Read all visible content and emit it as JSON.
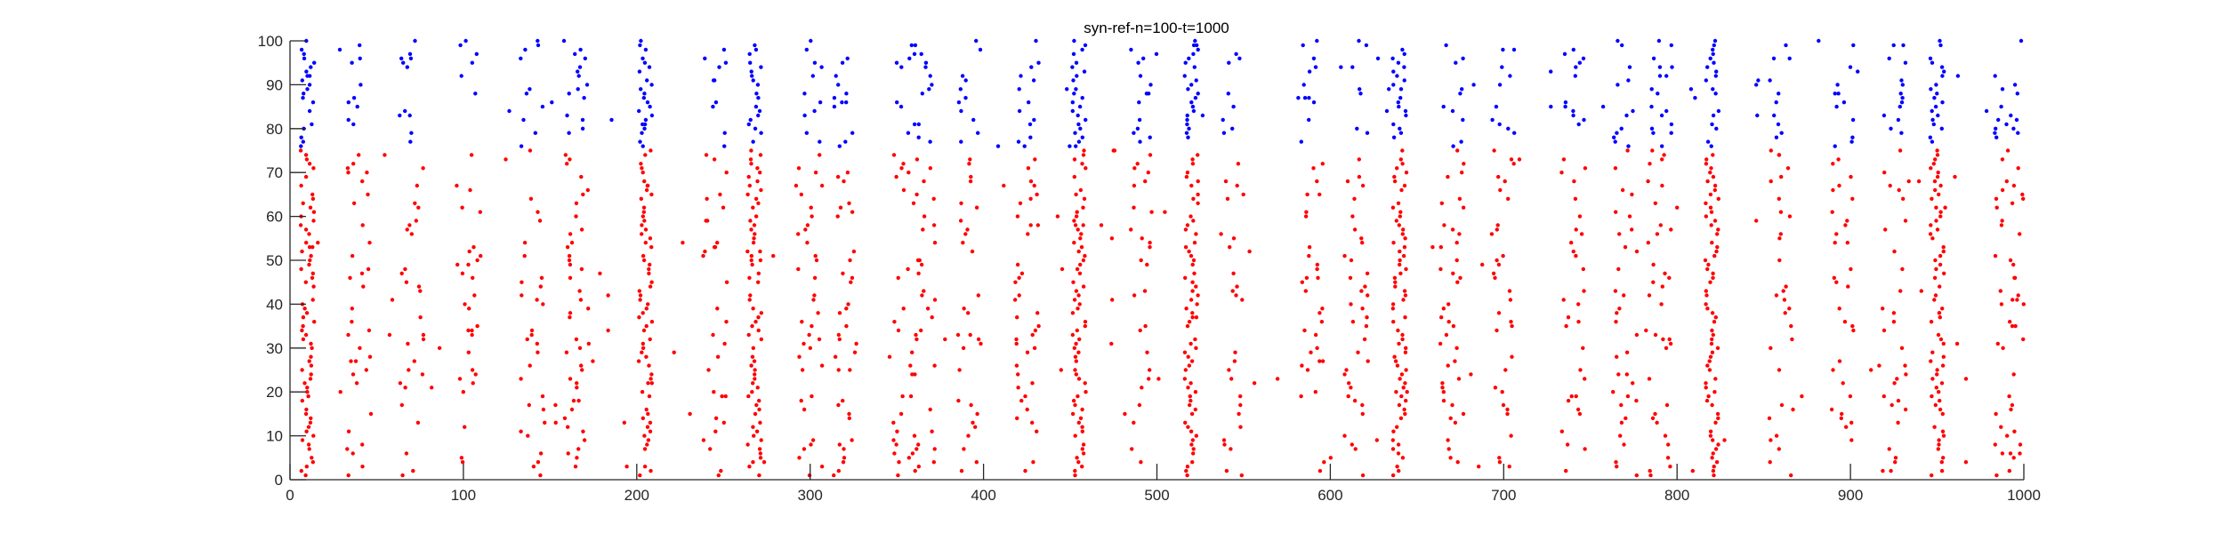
{
  "chart_data": {
    "type": "scatter",
    "title": "syn-ref-n=100-t=1000",
    "xlabel": "",
    "ylabel": "",
    "xlim": [
      0,
      1000
    ],
    "ylim": [
      0,
      100
    ],
    "x_ticks": [
      0,
      100,
      200,
      300,
      400,
      500,
      600,
      700,
      800,
      900,
      1000
    ],
    "y_ticks": [
      0,
      10,
      20,
      30,
      40,
      50,
      60,
      70,
      80,
      90,
      100
    ],
    "x_tick_labels": [
      "0",
      "100",
      "200",
      "300",
      "400",
      "500",
      "600",
      "700",
      "800",
      "900",
      "1000"
    ],
    "y_tick_labels": [
      "0",
      "10",
      "20",
      "30",
      "40",
      "50",
      "60",
      "70",
      "80",
      "90",
      "100"
    ],
    "grid": false,
    "legend": false,
    "colors": {
      "excitatory": "#ff0000",
      "inhibitory": "#0000ff",
      "axis": "#262626"
    },
    "series": [
      {
        "color": "#ff0000",
        "neuron_range": [
          1,
          75
        ]
      },
      {
        "color": "#0000ff",
        "neuron_range": [
          76,
          100
        ]
      }
    ],
    "burst_times": [
      10,
      40,
      70,
      103,
      140,
      165,
      205,
      245,
      268,
      300,
      320,
      355,
      365,
      392,
      425,
      455,
      490,
      520,
      545,
      590,
      615,
      640,
      670,
      700,
      740,
      770,
      790,
      820,
      860,
      895,
      925,
      950,
      990,
      1000
    ],
    "strong_bursts": [
      10,
      205,
      268,
      455,
      520,
      640,
      820,
      950
    ]
  }
}
